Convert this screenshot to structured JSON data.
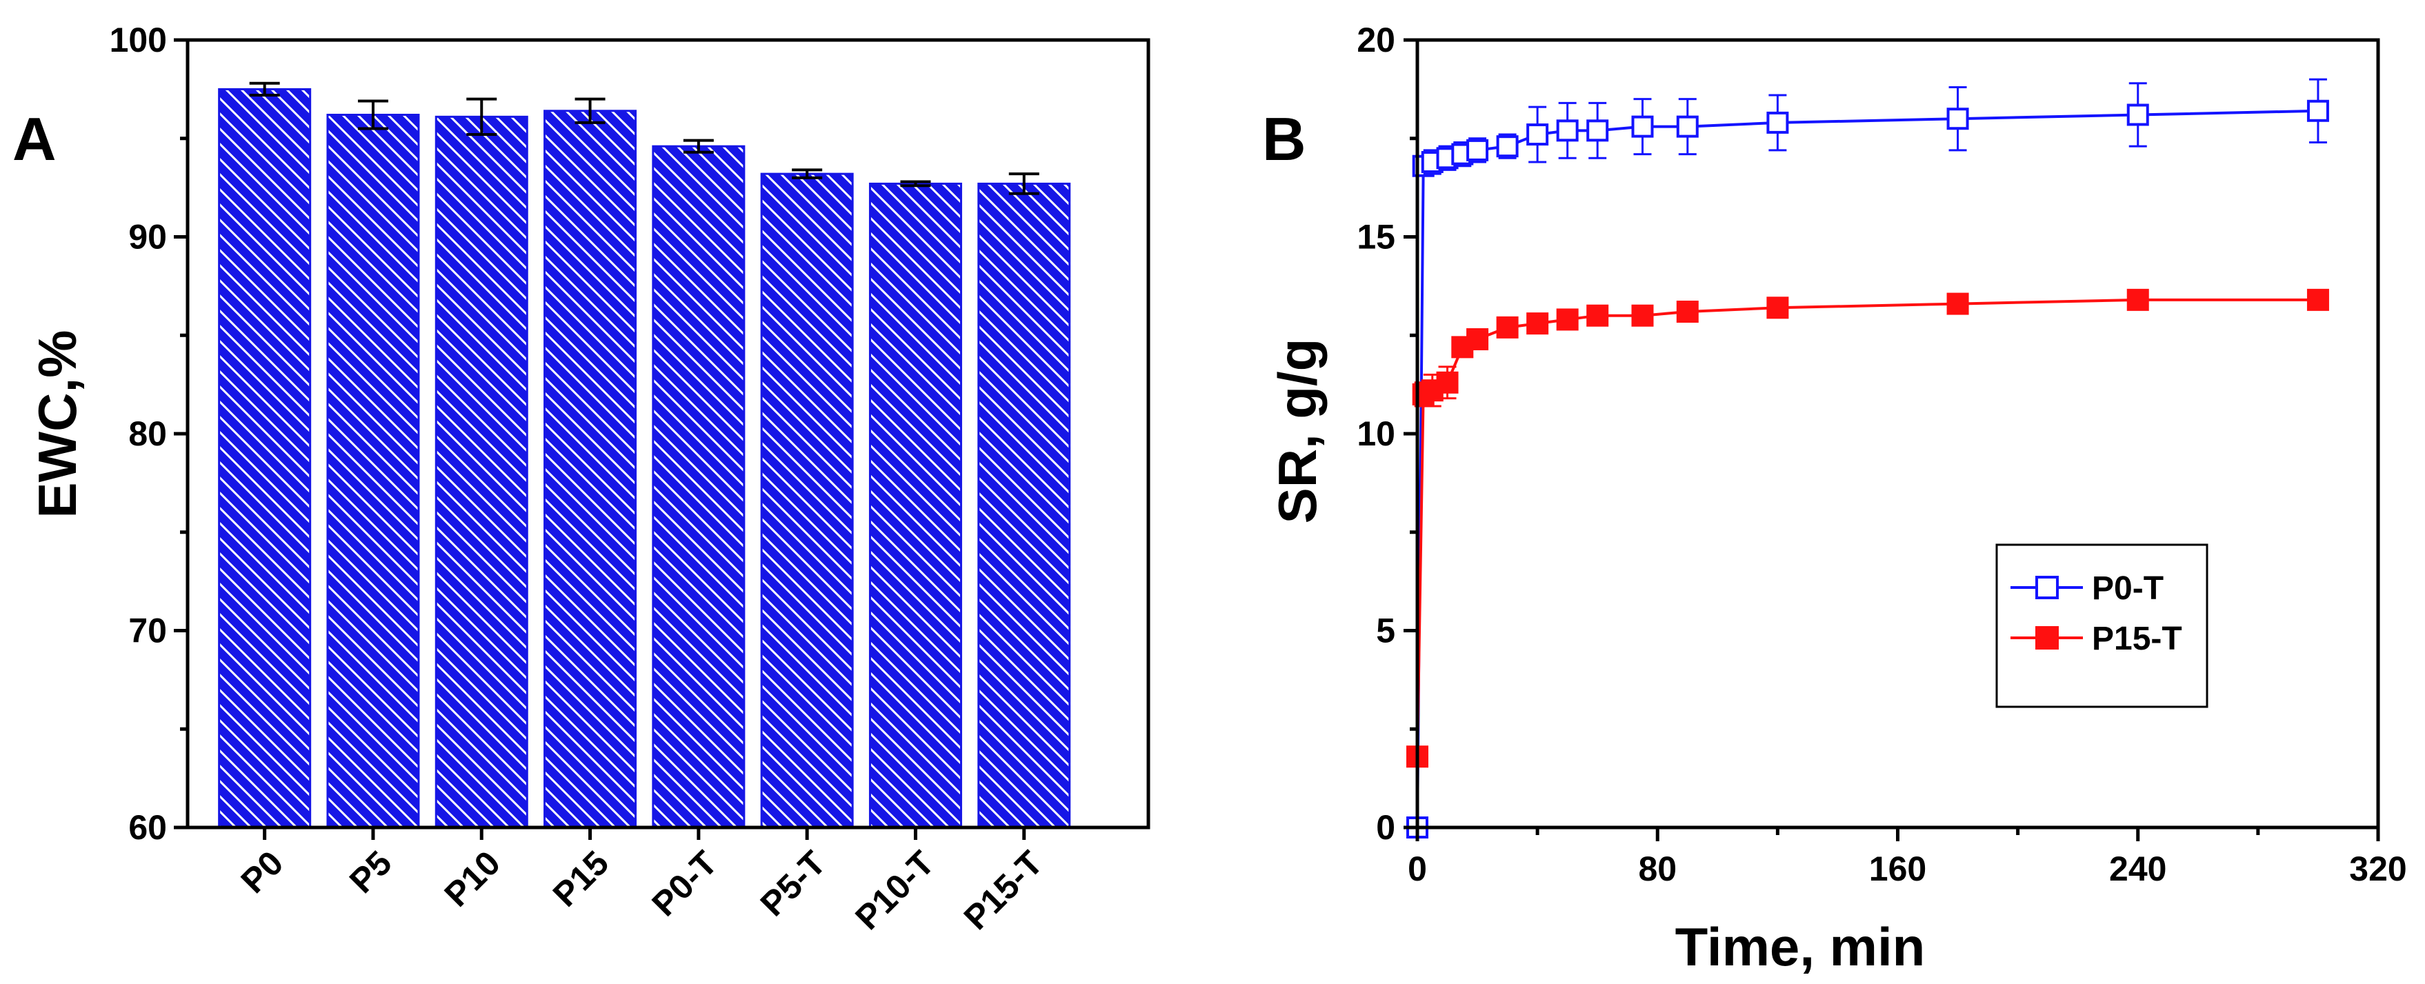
{
  "colors": {
    "bar_fill": "#1616e6",
    "hatch": "#ffffff",
    "series_blue": "#1414ff",
    "series_red": "#ff1010",
    "axis": "#000000"
  },
  "chart_data": [
    {
      "panel": "A",
      "type": "bar",
      "title": "",
      "xlabel": "",
      "ylabel": "EWC,%",
      "ylim": [
        60,
        100
      ],
      "yticks": [
        60,
        70,
        80,
        90,
        100
      ],
      "categories": [
        "P0",
        "P5",
        "P10",
        "P15",
        "P0-T",
        "P5-T",
        "P10-T",
        "P15-T"
      ],
      "values": [
        97.5,
        96.2,
        96.1,
        96.4,
        94.6,
        93.2,
        92.7,
        92.7
      ],
      "errors": [
        0.3,
        0.7,
        0.9,
        0.6,
        0.3,
        0.2,
        0.1,
        0.5
      ],
      "pattern": "diagonal hatch"
    },
    {
      "panel": "B",
      "type": "line",
      "title": "",
      "xlabel": "Time, min",
      "ylabel": "SR, g/g",
      "xlim": [
        0,
        320
      ],
      "ylim": [
        0,
        20
      ],
      "xticks": [
        0,
        80,
        160,
        240,
        320
      ],
      "yticks": [
        0,
        5,
        10,
        15,
        20
      ],
      "legend_position": "center-right",
      "series": [
        {
          "name": "P0-T",
          "marker": "open-square",
          "x": [
            0,
            2,
            5,
            10,
            15,
            20,
            30,
            40,
            50,
            60,
            75,
            90,
            120,
            180,
            240,
            300
          ],
          "y": [
            0,
            16.8,
            16.9,
            17.0,
            17.1,
            17.2,
            17.3,
            17.6,
            17.7,
            17.7,
            17.8,
            17.8,
            17.9,
            18.0,
            18.1,
            18.2
          ],
          "errors": [
            0,
            0.2,
            0.3,
            0.3,
            0.3,
            0.3,
            0.3,
            0.7,
            0.7,
            0.7,
            0.7,
            0.7,
            0.7,
            0.8,
            0.8,
            0.8
          ]
        },
        {
          "name": "P15-T",
          "marker": "filled-square",
          "x": [
            0,
            2,
            5,
            10,
            15,
            20,
            30,
            40,
            50,
            60,
            75,
            90,
            120,
            180,
            240,
            300
          ],
          "y": [
            1.8,
            11.0,
            11.1,
            11.3,
            12.2,
            12.4,
            12.7,
            12.8,
            12.9,
            13.0,
            13.0,
            13.1,
            13.2,
            13.3,
            13.4,
            13.4
          ],
          "errors": [
            0,
            0.3,
            0.4,
            0.4,
            0.2,
            0.2,
            0.1,
            0.1,
            0.1,
            0.1,
            0.1,
            0.1,
            0.1,
            0.1,
            0.1,
            0.1
          ]
        }
      ]
    }
  ]
}
